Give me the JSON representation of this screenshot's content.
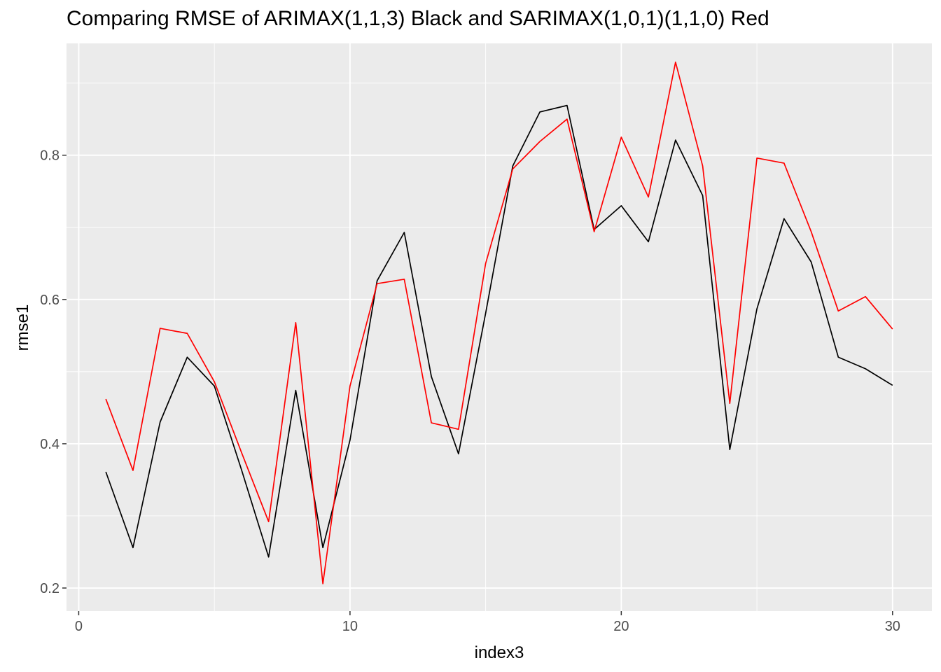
{
  "chart_data": {
    "type": "line",
    "title": "Comparing RMSE of ARIMAX(1,1,3) Black and SARIMAX(1,0,1)(1,1,0) Red",
    "xlabel": "index3",
    "ylabel": "rmse1",
    "xlim": [
      -0.45,
      31.45
    ],
    "ylim": [
      0.168,
      0.955
    ],
    "x_ticks": [
      0,
      10,
      20,
      30
    ],
    "y_ticks": [
      0.2,
      0.4,
      0.6,
      0.8
    ],
    "x_tick_labels": [
      "0",
      "10",
      "20",
      "30"
    ],
    "y_tick_labels": [
      "0.2",
      "0.4",
      "0.6",
      "0.8"
    ],
    "grid": true,
    "x": [
      1,
      2,
      3,
      4,
      5,
      6,
      7,
      8,
      9,
      10,
      11,
      12,
      13,
      14,
      15,
      16,
      17,
      18,
      19,
      20,
      21,
      22,
      23,
      24,
      25,
      26,
      27,
      28,
      29,
      30
    ],
    "series": [
      {
        "color": "#000000",
        "values": [
          0.361,
          0.256,
          0.43,
          0.52,
          0.48,
          0.364,
          0.243,
          0.474,
          0.256,
          0.405,
          0.626,
          0.693,
          0.493,
          0.386,
          0.581,
          0.785,
          0.86,
          0.869,
          0.697,
          0.73,
          0.68,
          0.821,
          0.744,
          0.392,
          0.587,
          0.712,
          0.652,
          0.52,
          0.504,
          0.481
        ]
      },
      {
        "color": "#ff0000",
        "values": [
          0.462,
          0.363,
          0.56,
          0.553,
          0.486,
          0.388,
          0.292,
          0.568,
          0.206,
          0.48,
          0.622,
          0.628,
          0.429,
          0.42,
          0.65,
          0.781,
          0.819,
          0.85,
          0.694,
          0.825,
          0.742,
          0.929,
          0.785,
          0.456,
          0.796,
          0.789,
          0.694,
          0.584,
          0.604,
          0.559
        ]
      }
    ]
  }
}
